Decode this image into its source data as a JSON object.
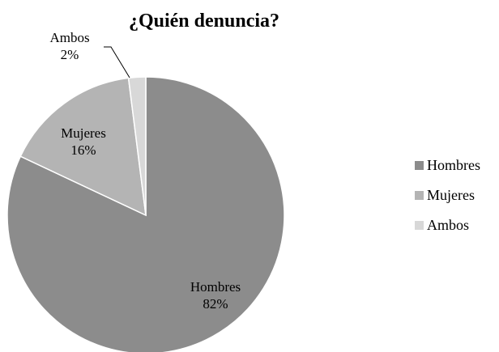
{
  "chart_data": {
    "type": "pie",
    "title": "¿Quién denuncia?",
    "categories": [
      "Hombres",
      "Mujeres",
      "Ambos"
    ],
    "values": [
      82,
      16,
      2
    ],
    "value_labels": [
      "82%",
      "16%",
      "2%"
    ],
    "colors": [
      "#8c8c8c",
      "#b4b4b4",
      "#d8d8d8"
    ],
    "legend": {
      "position": "right",
      "entries": [
        "Hombres",
        "Mujeres",
        "Ambos"
      ]
    }
  }
}
